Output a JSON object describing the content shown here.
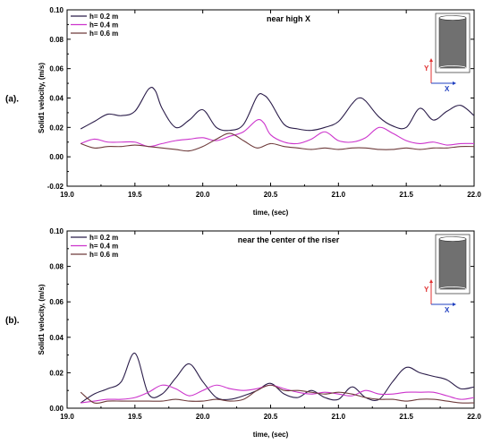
{
  "colors": {
    "dark": "#2b1d4a",
    "magenta": "#cc33cc",
    "brown": "#6e3b3b",
    "inset_fill": "#707070",
    "axis_y": "#e03030",
    "axis_x": "#2040c0"
  },
  "chart_data": [
    {
      "type": "line",
      "panel_label": "(a).",
      "title": "near high X",
      "xlabel": "time, (sec)",
      "ylabel": "Solid1 velocity, (m/s)",
      "xlim": [
        19.0,
        22.0
      ],
      "ylim": [
        -0.02,
        0.1
      ],
      "xticks": [
        19.0,
        19.5,
        20.0,
        20.5,
        21.0,
        21.5,
        22.0
      ],
      "xtick_labels": [
        "19.0",
        "19.5",
        "20.0",
        "20.5",
        "21.0",
        "21.5",
        "22.0"
      ],
      "yticks": [
        -0.02,
        0.0,
        0.02,
        0.04,
        0.06,
        0.08,
        0.1
      ],
      "ytick_labels": [
        "-0.02",
        "0.00",
        "0.02",
        "0.04",
        "0.06",
        "0.08",
        "0.10"
      ],
      "legend_position": "top-left",
      "inset": {
        "y_label": "Y",
        "x_label": "X"
      },
      "series": [
        {
          "name": "h= 0.2 m",
          "color": "#2b1d4a",
          "x": [
            19.1,
            19.2,
            19.3,
            19.4,
            19.5,
            19.6,
            19.65,
            19.7,
            19.8,
            19.9,
            20.0,
            20.1,
            20.2,
            20.3,
            20.4,
            20.45,
            20.5,
            20.6,
            20.7,
            20.8,
            20.9,
            21.0,
            21.1,
            21.15,
            21.2,
            21.3,
            21.4,
            21.5,
            21.6,
            21.7,
            21.8,
            21.9,
            22.0
          ],
          "y": [
            0.019,
            0.024,
            0.029,
            0.028,
            0.031,
            0.046,
            0.045,
            0.033,
            0.02,
            0.025,
            0.032,
            0.02,
            0.018,
            0.022,
            0.041,
            0.042,
            0.037,
            0.022,
            0.019,
            0.018,
            0.02,
            0.024,
            0.036,
            0.04,
            0.038,
            0.027,
            0.021,
            0.02,
            0.033,
            0.025,
            0.031,
            0.035,
            0.028
          ]
        },
        {
          "name": "h= 0.4 m",
          "color": "#cc33cc",
          "x": [
            19.1,
            19.2,
            19.3,
            19.4,
            19.5,
            19.6,
            19.7,
            19.8,
            19.9,
            20.0,
            20.1,
            20.2,
            20.3,
            20.4,
            20.45,
            20.5,
            20.6,
            20.7,
            20.8,
            20.9,
            21.0,
            21.1,
            21.2,
            21.3,
            21.4,
            21.5,
            21.6,
            21.7,
            21.8,
            21.9,
            22.0
          ],
          "y": [
            0.009,
            0.012,
            0.01,
            0.01,
            0.01,
            0.007,
            0.009,
            0.011,
            0.012,
            0.013,
            0.011,
            0.014,
            0.017,
            0.025,
            0.023,
            0.015,
            0.01,
            0.009,
            0.012,
            0.017,
            0.011,
            0.01,
            0.013,
            0.02,
            0.016,
            0.011,
            0.009,
            0.01,
            0.008,
            0.009,
            0.009
          ]
        },
        {
          "name": "h= 0.6 m",
          "color": "#6e3b3b",
          "x": [
            19.1,
            19.2,
            19.3,
            19.4,
            19.5,
            19.6,
            19.7,
            19.8,
            19.9,
            20.0,
            20.1,
            20.2,
            20.3,
            20.4,
            20.5,
            20.6,
            20.7,
            20.8,
            20.9,
            21.0,
            21.1,
            21.2,
            21.3,
            21.4,
            21.5,
            21.6,
            21.7,
            21.8,
            21.9,
            22.0
          ],
          "y": [
            0.009,
            0.006,
            0.007,
            0.007,
            0.008,
            0.007,
            0.006,
            0.005,
            0.004,
            0.007,
            0.012,
            0.016,
            0.011,
            0.006,
            0.009,
            0.007,
            0.006,
            0.005,
            0.006,
            0.005,
            0.006,
            0.006,
            0.005,
            0.005,
            0.006,
            0.005,
            0.006,
            0.006,
            0.007,
            0.007
          ]
        }
      ]
    },
    {
      "type": "line",
      "panel_label": "(b).",
      "title": "near the center of the riser",
      "xlabel": "time, (sec)",
      "ylabel": "Solid1 velocity, (m/s)",
      "xlim": [
        19.0,
        22.0
      ],
      "ylim": [
        0.0,
        0.1
      ],
      "xticks": [
        19.0,
        19.5,
        20.0,
        20.5,
        21.0,
        21.5,
        22.0
      ],
      "xtick_labels": [
        "19.0",
        "19.5",
        "20.0",
        "20.5",
        "21.0",
        "21.5",
        "22.0"
      ],
      "yticks": [
        0.0,
        0.02,
        0.04,
        0.06,
        0.08,
        0.1
      ],
      "ytick_labels": [
        "0.00",
        "0.02",
        "0.04",
        "0.06",
        "0.08",
        "0.10"
      ],
      "legend_position": "top-left",
      "inset": {
        "y_label": "Y",
        "x_label": "X"
      },
      "series": [
        {
          "name": "h= 0.2 m",
          "color": "#2b1d4a",
          "x": [
            19.1,
            19.2,
            19.3,
            19.4,
            19.5,
            19.6,
            19.7,
            19.8,
            19.9,
            20.0,
            20.1,
            20.2,
            20.3,
            20.4,
            20.5,
            20.6,
            20.7,
            20.8,
            20.9,
            21.0,
            21.1,
            21.2,
            21.3,
            21.4,
            21.5,
            21.6,
            21.7,
            21.8,
            21.9,
            22.0
          ],
          "y": [
            0.003,
            0.008,
            0.011,
            0.015,
            0.031,
            0.008,
            0.008,
            0.017,
            0.025,
            0.015,
            0.006,
            0.005,
            0.007,
            0.01,
            0.014,
            0.008,
            0.006,
            0.01,
            0.006,
            0.005,
            0.012,
            0.006,
            0.005,
            0.015,
            0.023,
            0.02,
            0.018,
            0.016,
            0.011,
            0.012
          ]
        },
        {
          "name": "h= 0.4 m",
          "color": "#cc33cc",
          "x": [
            19.1,
            19.2,
            19.3,
            19.4,
            19.5,
            19.6,
            19.7,
            19.8,
            19.9,
            20.0,
            20.1,
            20.2,
            20.3,
            20.4,
            20.5,
            20.6,
            20.7,
            20.8,
            20.9,
            21.0,
            21.1,
            21.2,
            21.3,
            21.4,
            21.5,
            21.6,
            21.7,
            21.8,
            21.9,
            22.0
          ],
          "y": [
            0.003,
            0.004,
            0.005,
            0.005,
            0.006,
            0.009,
            0.013,
            0.011,
            0.007,
            0.01,
            0.013,
            0.011,
            0.01,
            0.011,
            0.013,
            0.011,
            0.009,
            0.008,
            0.009,
            0.008,
            0.007,
            0.01,
            0.008,
            0.008,
            0.009,
            0.009,
            0.009,
            0.007,
            0.005,
            0.006
          ]
        },
        {
          "name": "h= 0.6 m",
          "color": "#6e3b3b",
          "x": [
            19.1,
            19.2,
            19.3,
            19.4,
            19.5,
            19.6,
            19.7,
            19.8,
            19.9,
            20.0,
            20.1,
            20.2,
            20.3,
            20.4,
            20.5,
            20.6,
            20.7,
            20.8,
            20.9,
            21.0,
            21.1,
            21.2,
            21.3,
            21.4,
            21.5,
            21.6,
            21.7,
            21.8,
            21.9,
            22.0
          ],
          "y": [
            0.009,
            0.003,
            0.004,
            0.004,
            0.004,
            0.004,
            0.004,
            0.005,
            0.004,
            0.004,
            0.005,
            0.004,
            0.005,
            0.01,
            0.013,
            0.01,
            0.01,
            0.009,
            0.008,
            0.009,
            0.008,
            0.006,
            0.005,
            0.005,
            0.004,
            0.005,
            0.005,
            0.004,
            0.003,
            0.003
          ]
        }
      ]
    }
  ]
}
